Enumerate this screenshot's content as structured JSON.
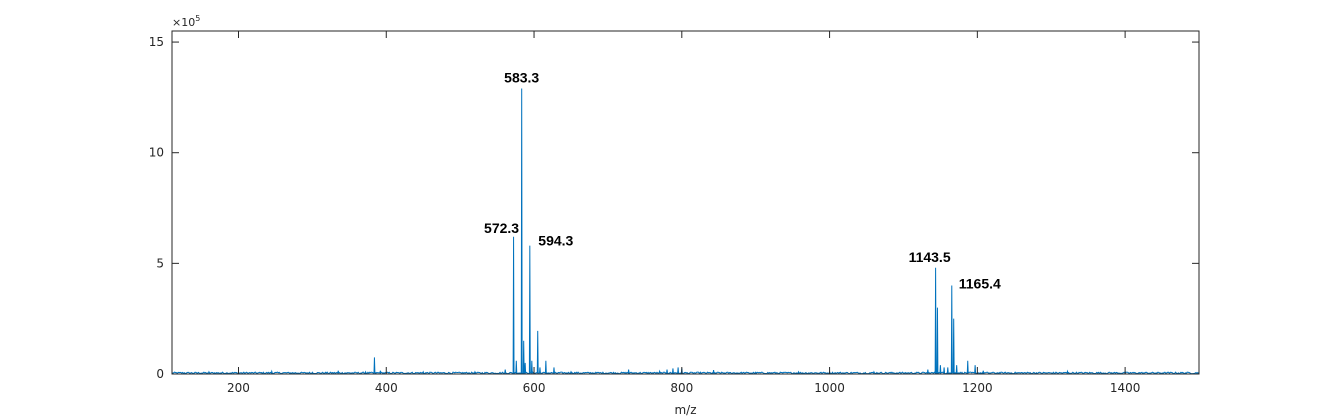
{
  "chart_data": {
    "type": "line",
    "title": "",
    "xlabel": "m/z",
    "ylabel": "",
    "y_exponent_base": "×10",
    "y_exponent_power": "5",
    "xlim": [
      110,
      1500
    ],
    "ylim": [
      0,
      15.5
    ],
    "xticks": [
      200,
      400,
      600,
      800,
      1000,
      1200,
      1400
    ],
    "yticks": [
      0,
      5,
      10,
      15
    ],
    "grid": false,
    "line_color": "#0072BD",
    "noise_floor": 0.05,
    "peaks": [
      {
        "x": 160,
        "y": 0.1
      },
      {
        "x": 245,
        "y": 0.12
      },
      {
        "x": 300,
        "y": 0.08
      },
      {
        "x": 335,
        "y": 0.15
      },
      {
        "x": 372,
        "y": 0.1
      },
      {
        "x": 384,
        "y": 0.75
      },
      {
        "x": 392,
        "y": 0.15
      },
      {
        "x": 450,
        "y": 0.1
      },
      {
        "x": 520,
        "y": 0.1
      },
      {
        "x": 561,
        "y": 0.2
      },
      {
        "x": 572.3,
        "y": 6.2
      },
      {
        "x": 576,
        "y": 0.6
      },
      {
        "x": 583.3,
        "y": 12.9
      },
      {
        "x": 586,
        "y": 1.5
      },
      {
        "x": 588,
        "y": 0.5
      },
      {
        "x": 594.3,
        "y": 5.8
      },
      {
        "x": 597,
        "y": 0.6
      },
      {
        "x": 605,
        "y": 1.95
      },
      {
        "x": 608,
        "y": 0.3
      },
      {
        "x": 616,
        "y": 0.6
      },
      {
        "x": 627,
        "y": 0.3
      },
      {
        "x": 650,
        "y": 0.1
      },
      {
        "x": 728,
        "y": 0.2
      },
      {
        "x": 770,
        "y": 0.12
      },
      {
        "x": 780,
        "y": 0.2
      },
      {
        "x": 788,
        "y": 0.25
      },
      {
        "x": 795,
        "y": 0.3
      },
      {
        "x": 800,
        "y": 0.25
      },
      {
        "x": 843,
        "y": 0.18
      },
      {
        "x": 900,
        "y": 0.08
      },
      {
        "x": 958,
        "y": 0.1
      },
      {
        "x": 1000,
        "y": 0.1
      },
      {
        "x": 1060,
        "y": 0.1
      },
      {
        "x": 1133,
        "y": 0.2
      },
      {
        "x": 1143.5,
        "y": 4.8
      },
      {
        "x": 1146,
        "y": 3.0
      },
      {
        "x": 1150,
        "y": 0.4
      },
      {
        "x": 1155,
        "y": 0.3
      },
      {
        "x": 1160,
        "y": 0.3
      },
      {
        "x": 1165.4,
        "y": 4.0
      },
      {
        "x": 1168,
        "y": 2.5
      },
      {
        "x": 1172,
        "y": 0.4
      },
      {
        "x": 1187,
        "y": 0.6
      },
      {
        "x": 1197,
        "y": 0.4
      },
      {
        "x": 1208,
        "y": 0.15
      },
      {
        "x": 1322,
        "y": 0.12
      }
    ],
    "annotations": [
      {
        "text": "583.3",
        "x": 583.3,
        "y": 12.9
      },
      {
        "text": "572.3",
        "x": 572.3,
        "y": 6.2
      },
      {
        "text": "594.3",
        "x": 594.3,
        "y": 5.8
      },
      {
        "text": "1143.5",
        "x": 1143.5,
        "y": 4.8
      },
      {
        "text": "1165.4",
        "x": 1165.4,
        "y": 4.0
      }
    ]
  }
}
